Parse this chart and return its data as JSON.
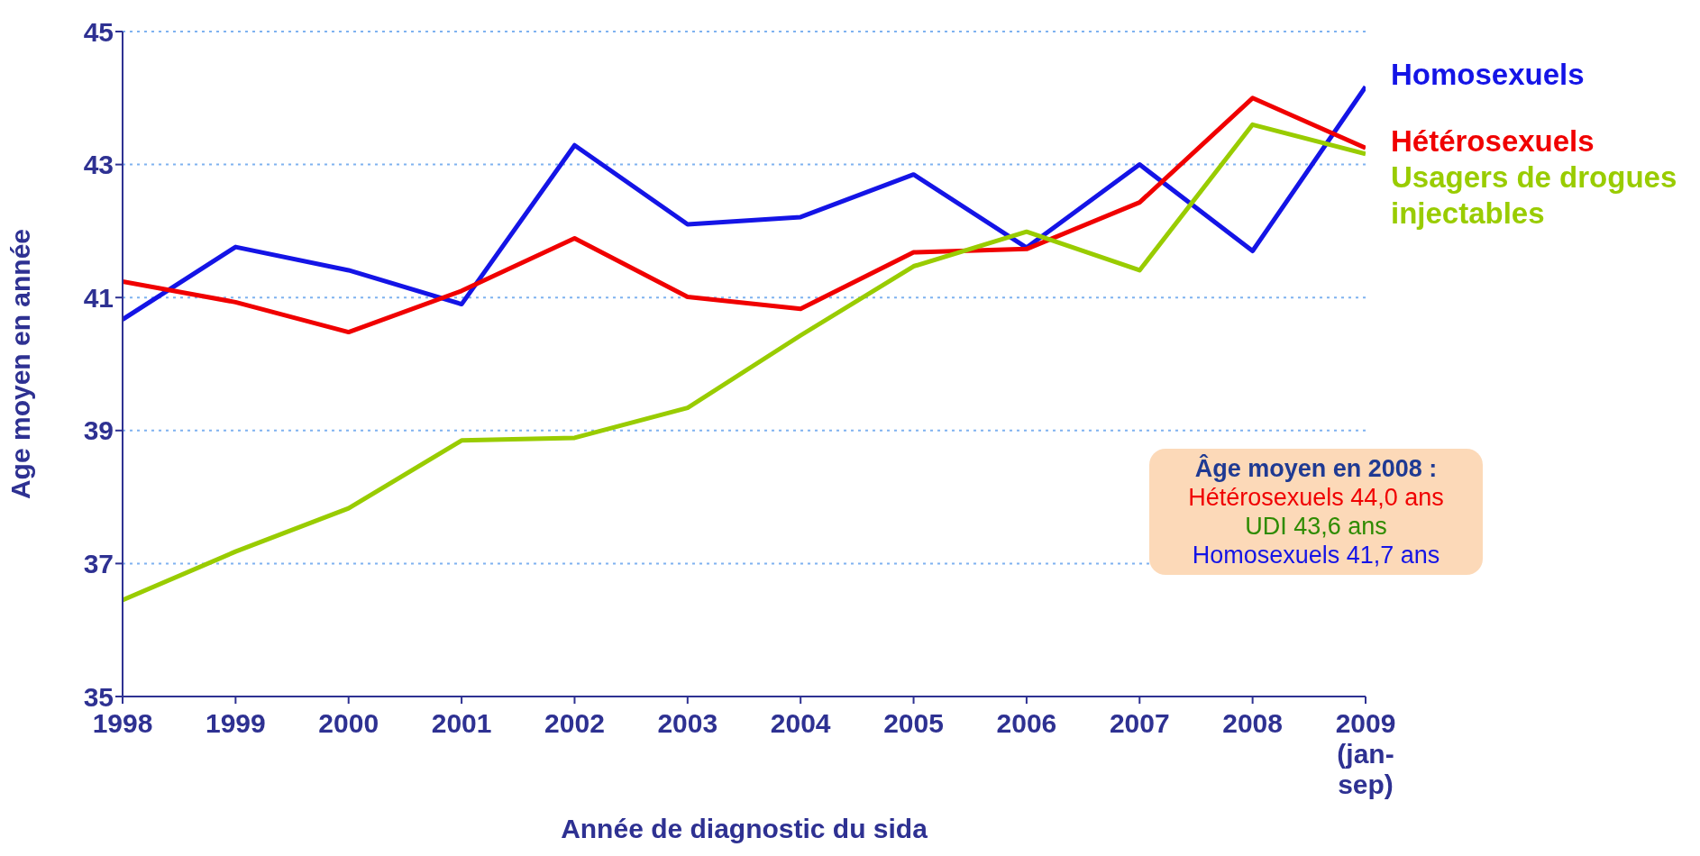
{
  "chart_data": {
    "type": "line",
    "xlabel": "Année de diagnostic du sida",
    "ylabel": "Age moyen en année",
    "categories": [
      "1998",
      "1999",
      "2000",
      "2001",
      "2002",
      "2003",
      "2004",
      "2005",
      "2006",
      "2007",
      "2008",
      "2009 (jan-sep)"
    ],
    "series": [
      {
        "name": "Homosexuels",
        "color": "#1414e6",
        "values": [
          40.67,
          41.76,
          41.41,
          40.9,
          43.29,
          42.1,
          42.21,
          42.85,
          41.75,
          43.0,
          41.7,
          44.17
        ]
      },
      {
        "name": "Hétérosexuels",
        "color": "#f00000",
        "values": [
          41.24,
          40.93,
          40.48,
          41.1,
          41.89,
          41.01,
          40.83,
          41.68,
          41.73,
          42.43,
          44.0,
          43.25
        ]
      },
      {
        "name": "Usagers de drogues injectables",
        "color": "#99cc00",
        "values": [
          36.45,
          37.18,
          37.83,
          38.85,
          38.89,
          39.34,
          40.43,
          41.47,
          41.99,
          41.41,
          43.6,
          43.16
        ]
      }
    ],
    "ylim": [
      35,
      45
    ],
    "yticks": [
      35,
      37,
      39,
      41,
      43,
      45
    ],
    "grid": "y",
    "legend": "right",
    "marker": "none",
    "line_style": "solid",
    "annotations": [
      "Âge moyen en 2008 :",
      "Hétérosexuels 44,0 ans",
      "UDI 43,6 ans",
      "Homosexuels 41,7 ans"
    ]
  }
}
